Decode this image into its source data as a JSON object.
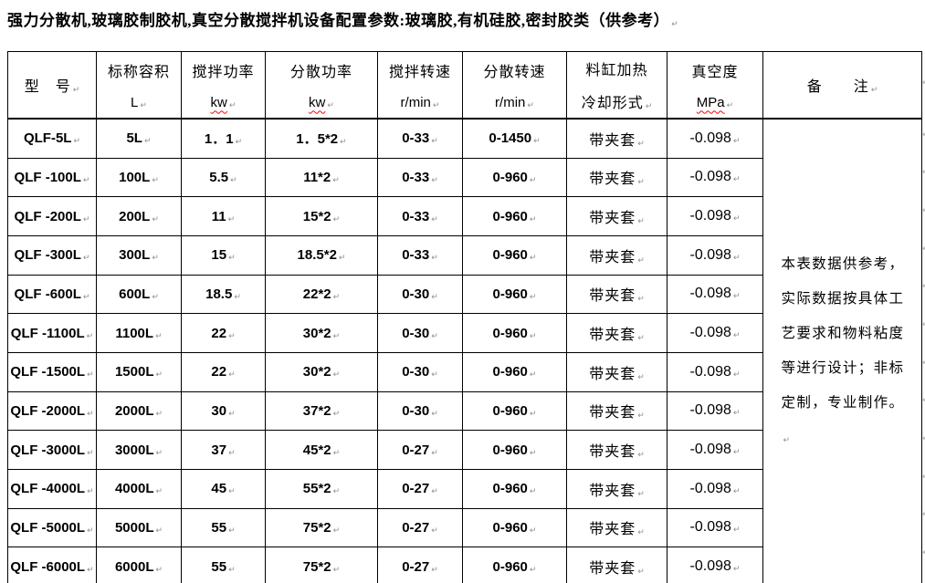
{
  "marks": {
    "pilcrow": "↵"
  },
  "title": "强力分散机,玻璃胶制胶机,真空分散搅拌机设备配置参数:玻璃胶,有机硅胶,密封胶类（供参考）",
  "table": {
    "columns": [
      {
        "key": "model",
        "line1": "型　号",
        "line2": "",
        "line2_cjk": false,
        "misspelled": false
      },
      {
        "key": "volume",
        "line1": "标称容积",
        "line2": "L",
        "line2_cjk": false,
        "misspelled": false
      },
      {
        "key": "stir_power",
        "line1": "搅拌功率",
        "line2": "kw",
        "line2_cjk": false,
        "misspelled": true
      },
      {
        "key": "disperse_power",
        "line1": "分散功率",
        "line2": "kw",
        "line2_cjk": false,
        "misspelled": true
      },
      {
        "key": "stir_speed",
        "line1": "搅拌转速",
        "line2": "r/min",
        "line2_cjk": false,
        "misspelled": false
      },
      {
        "key": "disperse_speed",
        "line1": "分散转速",
        "line2": "r/min",
        "line2_cjk": false,
        "misspelled": false
      },
      {
        "key": "heating",
        "line1": "料缸加热",
        "line2": "冷却形式",
        "line2_cjk": true,
        "misspelled": false
      },
      {
        "key": "vacuum",
        "line1": "真空度",
        "line2": "MPa",
        "line2_cjk": false,
        "misspelled": true
      },
      {
        "key": "remark",
        "line1": "备　　注",
        "line2": "",
        "line2_cjk": false,
        "misspelled": false
      }
    ],
    "rows": [
      {
        "model": "QLF-5L",
        "volume": "5L",
        "stir_power": "1．1",
        "disperse_power": "1．5*2",
        "stir_speed": "0-33",
        "disperse_speed": "0-1450",
        "heating": "带夹套",
        "vacuum": "-0.098"
      },
      {
        "model": "QLF -100L",
        "volume": "100L",
        "stir_power": "5.5",
        "disperse_power": "11*2",
        "stir_speed": "0-33",
        "disperse_speed": "0-960",
        "heating": "带夹套",
        "vacuum": "-0.098"
      },
      {
        "model": "QLF -200L",
        "volume": "200L",
        "stir_power": "11",
        "disperse_power": "15*2",
        "stir_speed": "0-33",
        "disperse_speed": "0-960",
        "heating": "带夹套",
        "vacuum": "-0.098"
      },
      {
        "model": "QLF -300L",
        "volume": "300L",
        "stir_power": "15",
        "disperse_power": "18.5*2",
        "stir_speed": "0-33",
        "disperse_speed": "0-960",
        "heating": "带夹套",
        "vacuum": "-0.098"
      },
      {
        "model": "QLF -600L",
        "volume": "600L",
        "stir_power": "18.5",
        "disperse_power": "22*2",
        "stir_speed": "0-30",
        "disperse_speed": "0-960",
        "heating": "带夹套",
        "vacuum": "-0.098"
      },
      {
        "model": "QLF -1100L",
        "volume": "1100L",
        "stir_power": "22",
        "disperse_power": "30*2",
        "stir_speed": "0-30",
        "disperse_speed": "0-960",
        "heating": "带夹套",
        "vacuum": "-0.098"
      },
      {
        "model": "QLF -1500L",
        "volume": "1500L",
        "stir_power": "22",
        "disperse_power": "30*2",
        "stir_speed": "0-30",
        "disperse_speed": "0-960",
        "heating": "带夹套",
        "vacuum": "-0.098"
      },
      {
        "model": "QLF -2000L",
        "volume": "2000L",
        "stir_power": "30",
        "disperse_power": "37*2",
        "stir_speed": "0-30",
        "disperse_speed": "0-960",
        "heating": "带夹套",
        "vacuum": "-0.098"
      },
      {
        "model": "QLF -3000L",
        "volume": "3000L",
        "stir_power": "37",
        "disperse_power": "45*2",
        "stir_speed": "0-27",
        "disperse_speed": "0-960",
        "heating": "带夹套",
        "vacuum": "-0.098"
      },
      {
        "model": "QLF -4000L",
        "volume": "4000L",
        "stir_power": "45",
        "disperse_power": "55*2",
        "stir_speed": "0-27",
        "disperse_speed": "0-960",
        "heating": "带夹套",
        "vacuum": "-0.098"
      },
      {
        "model": "QLF -5000L",
        "volume": "5000L",
        "stir_power": "55",
        "disperse_power": "75*2",
        "stir_speed": "0-27",
        "disperse_speed": "0-960",
        "heating": "带夹套",
        "vacuum": "-0.098"
      },
      {
        "model": "QLF -6000L",
        "volume": "6000L",
        "stir_power": "55",
        "disperse_power": "75*2",
        "stir_speed": "0-27",
        "disperse_speed": "0-960",
        "heating": "带夹套",
        "vacuum": "-0.098"
      }
    ],
    "remark_text": "本表数据供参考，实际数据按具体工艺要求和物料粘度等进行设计；非标定制，专业制作。"
  }
}
